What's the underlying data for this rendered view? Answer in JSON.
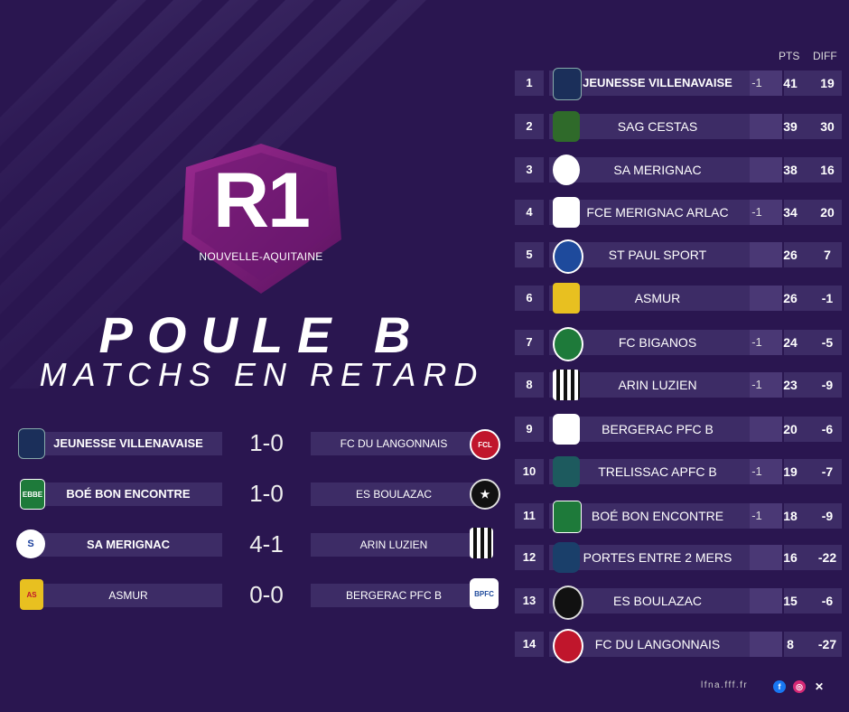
{
  "badge": {
    "code": "R1",
    "region": "NOUVELLE-AQUITAINE"
  },
  "title": {
    "line1": "POULE B",
    "line2": "MATCHS EN RETARD"
  },
  "matches": [
    {
      "home": "JEUNESSE VILLENAVAISE",
      "score": "1-0",
      "away": "FC DU LANGONNAIS"
    },
    {
      "home": "BOÉ BON ENCONTRE",
      "score": "1-0",
      "away": "ES BOULAZAC"
    },
    {
      "home": "SA MERIGNAC",
      "score": "4-1",
      "away": "ARIN LUZIEN"
    },
    {
      "home": "ASMUR",
      "score": "0-0",
      "away": "BERGERAC PFC B"
    }
  ],
  "standings": {
    "headers": {
      "pts": "PTS",
      "diff": "DIFF"
    },
    "rows": [
      {
        "rank": "1",
        "team": "JEUNESSE VILLENAVAISE",
        "penalty": "-1",
        "pts": "41",
        "diff": "19"
      },
      {
        "rank": "2",
        "team": "SAG CESTAS",
        "penalty": "",
        "pts": "39",
        "diff": "30"
      },
      {
        "rank": "3",
        "team": "SA MERIGNAC",
        "penalty": "",
        "pts": "38",
        "diff": "16"
      },
      {
        "rank": "4",
        "team": "FCE MERIGNAC ARLAC",
        "penalty": "-1",
        "pts": "34",
        "diff": "20"
      },
      {
        "rank": "5",
        "team": "ST PAUL SPORT",
        "penalty": "",
        "pts": "26",
        "diff": "7"
      },
      {
        "rank": "6",
        "team": "ASMUR",
        "penalty": "",
        "pts": "26",
        "diff": "-1"
      },
      {
        "rank": "7",
        "team": "FC BIGANOS",
        "penalty": "-1",
        "pts": "24",
        "diff": "-5"
      },
      {
        "rank": "8",
        "team": "ARIN LUZIEN",
        "penalty": "-1",
        "pts": "23",
        "diff": "-9"
      },
      {
        "rank": "9",
        "team": "BERGERAC PFC B",
        "penalty": "",
        "pts": "20",
        "diff": "-6"
      },
      {
        "rank": "10",
        "team": "TRELISSAC APFC B",
        "penalty": "-1",
        "pts": "19",
        "diff": "-7"
      },
      {
        "rank": "11",
        "team": "BOÉ BON ENCONTRE",
        "penalty": "-1",
        "pts": "18",
        "diff": "-9"
      },
      {
        "rank": "12",
        "team": "PORTES ENTRE 2 MERS",
        "penalty": "",
        "pts": "16",
        "diff": "-22"
      },
      {
        "rank": "13",
        "team": "ES BOULAZAC",
        "penalty": "",
        "pts": "15",
        "diff": "-6"
      },
      {
        "rank": "14",
        "team": "FC DU LANGONNAIS",
        "penalty": "",
        "pts": "8",
        "diff": "-27"
      }
    ]
  },
  "footer": {
    "site": "lfna.fff.fr",
    "social_icons": [
      "facebook-icon",
      "instagram-icon",
      "x-icon"
    ]
  },
  "colors": {
    "background": "#2a1650",
    "bar": "#3d2c66",
    "badge": "#7a1f7a"
  }
}
